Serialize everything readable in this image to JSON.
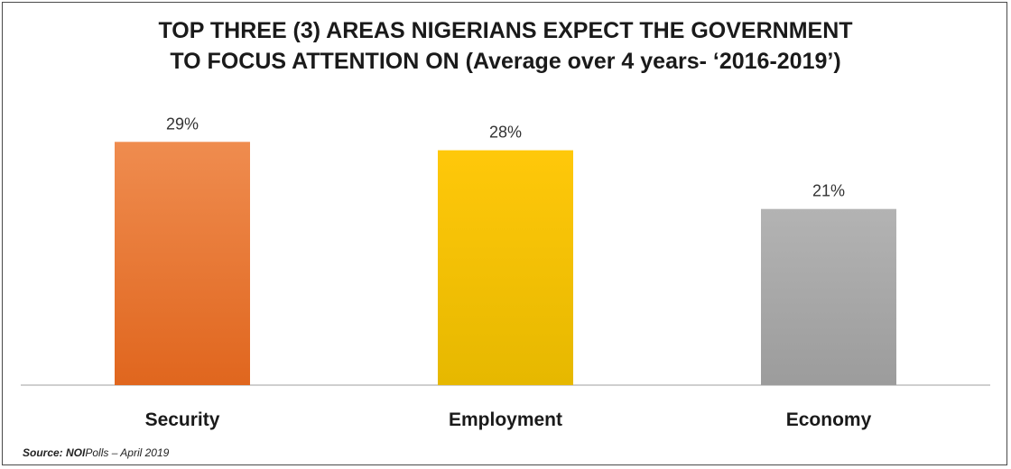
{
  "chart_data": {
    "type": "bar",
    "title_lines": [
      "TOP THREE (3) AREAS NIGERIANS EXPECT THE GOVERNMENT",
      "TO FOCUS ATTENTION ON (Average over 4 years- ‘2016-2019’)"
    ],
    "categories": [
      "Security",
      "Employment",
      "Economy"
    ],
    "values": [
      29,
      28,
      21
    ],
    "value_labels": [
      "29%",
      "28%",
      "21%"
    ],
    "value_unit": "%",
    "ylim": [
      0,
      32
    ],
    "grid": false,
    "legend": "none",
    "colors": [
      {
        "top": "#ef8c4f",
        "bottom": "#e0661e"
      },
      {
        "top": "#ffc80a",
        "bottom": "#e6b800"
      },
      {
        "top": "#b3b3b3",
        "bottom": "#9c9c9c"
      }
    ],
    "axis_line_color": "#bfbfbf"
  },
  "source": {
    "prefix": "Source: ",
    "org": "NOI",
    "rest": "Polls – April 2019"
  }
}
